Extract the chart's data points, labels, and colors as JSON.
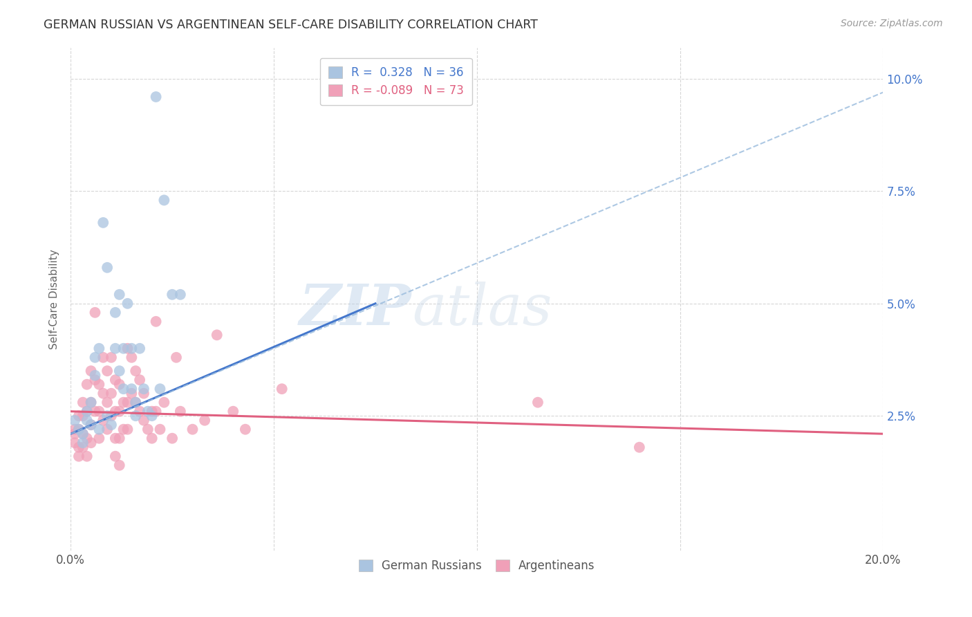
{
  "title": "GERMAN RUSSIAN VS ARGENTINEAN SELF-CARE DISABILITY CORRELATION CHART",
  "source": "Source: ZipAtlas.com",
  "ylabel": "Self-Care Disability",
  "xlim": [
    0.0,
    0.2
  ],
  "ylim": [
    -0.005,
    0.107
  ],
  "xticks": [
    0.0,
    0.05,
    0.1,
    0.15,
    0.2
  ],
  "xtick_labels": [
    "0.0%",
    "",
    "",
    "",
    "20.0%"
  ],
  "yticks": [
    0.025,
    0.05,
    0.075,
    0.1
  ],
  "ytick_labels": [
    "2.5%",
    "5.0%",
    "7.5%",
    "10.0%"
  ],
  "background_color": "#ffffff",
  "grid_color": "#cccccc",
  "watermark_zip": "ZIP",
  "watermark_atlas": "atlas",
  "legend_line1": "R =  0.328   N = 36",
  "legend_line2": "R = -0.089   N = 73",
  "blue_color": "#aac4e0",
  "pink_color": "#f0a0b8",
  "blue_line_color": "#4477cc",
  "pink_line_color": "#e06080",
  "blue_scatter": [
    [
      0.001,
      0.024
    ],
    [
      0.002,
      0.022
    ],
    [
      0.003,
      0.021
    ],
    [
      0.003,
      0.019
    ],
    [
      0.004,
      0.026
    ],
    [
      0.004,
      0.024
    ],
    [
      0.005,
      0.028
    ],
    [
      0.005,
      0.023
    ],
    [
      0.006,
      0.034
    ],
    [
      0.006,
      0.038
    ],
    [
      0.007,
      0.022
    ],
    [
      0.007,
      0.04
    ],
    [
      0.008,
      0.068
    ],
    [
      0.009,
      0.058
    ],
    [
      0.009,
      0.025
    ],
    [
      0.01,
      0.023
    ],
    [
      0.011,
      0.048
    ],
    [
      0.011,
      0.04
    ],
    [
      0.012,
      0.052
    ],
    [
      0.012,
      0.035
    ],
    [
      0.013,
      0.04
    ],
    [
      0.013,
      0.031
    ],
    [
      0.014,
      0.05
    ],
    [
      0.015,
      0.04
    ],
    [
      0.015,
      0.031
    ],
    [
      0.016,
      0.028
    ],
    [
      0.016,
      0.025
    ],
    [
      0.017,
      0.04
    ],
    [
      0.018,
      0.031
    ],
    [
      0.019,
      0.026
    ],
    [
      0.02,
      0.025
    ],
    [
      0.021,
      0.096
    ],
    [
      0.022,
      0.031
    ],
    [
      0.023,
      0.073
    ],
    [
      0.025,
      0.052
    ],
    [
      0.027,
      0.052
    ]
  ],
  "pink_scatter": [
    [
      0.001,
      0.022
    ],
    [
      0.001,
      0.021
    ],
    [
      0.001,
      0.019
    ],
    [
      0.002,
      0.025
    ],
    [
      0.002,
      0.022
    ],
    [
      0.002,
      0.018
    ],
    [
      0.002,
      0.016
    ],
    [
      0.003,
      0.028
    ],
    [
      0.003,
      0.025
    ],
    [
      0.003,
      0.021
    ],
    [
      0.003,
      0.018
    ],
    [
      0.004,
      0.032
    ],
    [
      0.004,
      0.026
    ],
    [
      0.004,
      0.02
    ],
    [
      0.004,
      0.016
    ],
    [
      0.005,
      0.035
    ],
    [
      0.005,
      0.028
    ],
    [
      0.005,
      0.023
    ],
    [
      0.005,
      0.019
    ],
    [
      0.006,
      0.048
    ],
    [
      0.006,
      0.033
    ],
    [
      0.006,
      0.026
    ],
    [
      0.007,
      0.032
    ],
    [
      0.007,
      0.026
    ],
    [
      0.007,
      0.02
    ],
    [
      0.008,
      0.038
    ],
    [
      0.008,
      0.03
    ],
    [
      0.008,
      0.024
    ],
    [
      0.009,
      0.035
    ],
    [
      0.009,
      0.028
    ],
    [
      0.009,
      0.022
    ],
    [
      0.01,
      0.038
    ],
    [
      0.01,
      0.03
    ],
    [
      0.01,
      0.025
    ],
    [
      0.011,
      0.033
    ],
    [
      0.011,
      0.026
    ],
    [
      0.011,
      0.02
    ],
    [
      0.011,
      0.016
    ],
    [
      0.012,
      0.032
    ],
    [
      0.012,
      0.026
    ],
    [
      0.012,
      0.02
    ],
    [
      0.012,
      0.014
    ],
    [
      0.013,
      0.028
    ],
    [
      0.013,
      0.022
    ],
    [
      0.014,
      0.04
    ],
    [
      0.014,
      0.028
    ],
    [
      0.014,
      0.022
    ],
    [
      0.015,
      0.038
    ],
    [
      0.015,
      0.03
    ],
    [
      0.016,
      0.035
    ],
    [
      0.016,
      0.028
    ],
    [
      0.017,
      0.033
    ],
    [
      0.017,
      0.026
    ],
    [
      0.018,
      0.03
    ],
    [
      0.018,
      0.024
    ],
    [
      0.019,
      0.022
    ],
    [
      0.02,
      0.026
    ],
    [
      0.02,
      0.02
    ],
    [
      0.021,
      0.046
    ],
    [
      0.021,
      0.026
    ],
    [
      0.022,
      0.022
    ],
    [
      0.023,
      0.028
    ],
    [
      0.025,
      0.02
    ],
    [
      0.026,
      0.038
    ],
    [
      0.027,
      0.026
    ],
    [
      0.03,
      0.022
    ],
    [
      0.033,
      0.024
    ],
    [
      0.036,
      0.043
    ],
    [
      0.04,
      0.026
    ],
    [
      0.043,
      0.022
    ],
    [
      0.052,
      0.031
    ],
    [
      0.115,
      0.028
    ],
    [
      0.14,
      0.018
    ]
  ],
  "blue_trendline_solid": [
    [
      0.0,
      0.021
    ],
    [
      0.075,
      0.05
    ]
  ],
  "blue_trendline_dashed": [
    [
      0.0,
      0.021
    ],
    [
      0.2,
      0.097
    ]
  ],
  "pink_trendline": [
    [
      0.0,
      0.026
    ],
    [
      0.2,
      0.021
    ]
  ]
}
